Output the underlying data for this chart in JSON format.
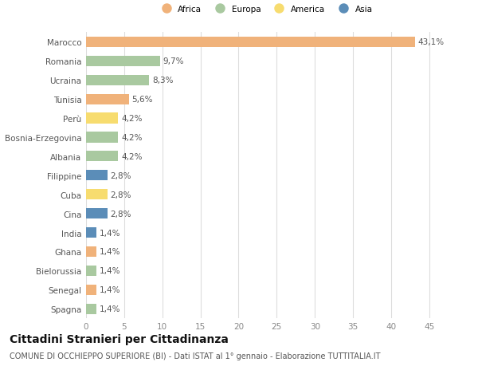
{
  "countries": [
    "Marocco",
    "Romania",
    "Ucraina",
    "Tunisia",
    "Perù",
    "Bosnia-Erzegovina",
    "Albania",
    "Filippine",
    "Cuba",
    "Cina",
    "India",
    "Ghana",
    "Bielorussia",
    "Senegal",
    "Spagna"
  ],
  "values": [
    43.1,
    9.7,
    8.3,
    5.6,
    4.2,
    4.2,
    4.2,
    2.8,
    2.8,
    2.8,
    1.4,
    1.4,
    1.4,
    1.4,
    1.4
  ],
  "labels": [
    "43,1%",
    "9,7%",
    "8,3%",
    "5,6%",
    "4,2%",
    "4,2%",
    "4,2%",
    "2,8%",
    "2,8%",
    "2,8%",
    "1,4%",
    "1,4%",
    "1,4%",
    "1,4%",
    "1,4%"
  ],
  "continents": [
    "Africa",
    "Europa",
    "Europa",
    "Africa",
    "America",
    "Europa",
    "Europa",
    "Asia",
    "America",
    "Asia",
    "Asia",
    "Africa",
    "Europa",
    "Africa",
    "Europa"
  ],
  "continent_colors": {
    "Africa": "#F0B27A",
    "Europa": "#A9C9A0",
    "America": "#F7DC6F",
    "Asia": "#5B8DB8"
  },
  "legend_order": [
    "Africa",
    "Europa",
    "America",
    "Asia"
  ],
  "xlim": [
    0,
    47
  ],
  "xticks": [
    0,
    5,
    10,
    15,
    20,
    25,
    30,
    35,
    40,
    45
  ],
  "title": "Cittadini Stranieri per Cittadinanza",
  "subtitle": "COMUNE DI OCCHIEPPO SUPERIORE (BI) - Dati ISTAT al 1° gennaio - Elaborazione TUTTITALIA.IT",
  "background_color": "#FFFFFF",
  "grid_color": "#DDDDDD",
  "bar_height": 0.55,
  "label_fontsize": 7.5,
  "tick_fontsize": 7.5,
  "title_fontsize": 10,
  "subtitle_fontsize": 7
}
